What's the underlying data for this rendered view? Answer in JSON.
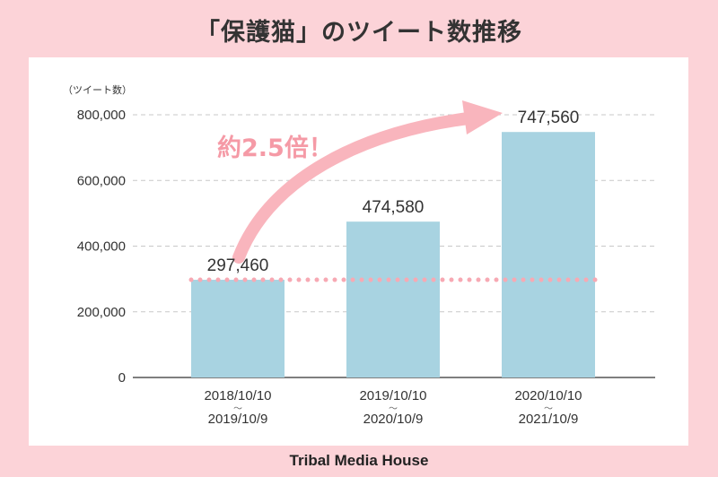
{
  "title": "「保護猫」のツイート数推移",
  "footer": "Tribal Media House",
  "chart_data": {
    "type": "bar",
    "y_unit_label": "（ツイート数）",
    "categories": [
      {
        "start": "2018/10/10",
        "end": "2019/10/9"
      },
      {
        "start": "2019/10/10",
        "end": "2020/10/9"
      },
      {
        "start": "2020/10/10",
        "end": "2021/10/9"
      }
    ],
    "values": [
      297460,
      474580,
      747560
    ],
    "value_labels": [
      "297,460",
      "474,580",
      "747,560"
    ],
    "ylim": [
      0,
      800000
    ],
    "yticks": [
      0,
      200000,
      400000,
      600000,
      800000
    ],
    "ytick_labels": [
      "0",
      "200,000",
      "400,000",
      "600,000",
      "800,000"
    ],
    "grid": true,
    "range_separator": "〜",
    "reference_line_value": 297460,
    "annotation": "約2.5倍！",
    "colors": {
      "bar": "#a8d3e1",
      "reference_line": "#f7a9b3",
      "arrow": "#f9b5bd",
      "annotation": "#f59aa6",
      "grid": "#c8c8c8"
    }
  }
}
